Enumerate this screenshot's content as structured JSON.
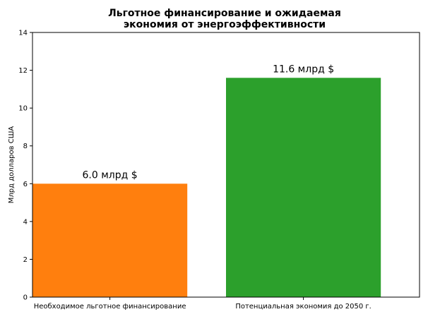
{
  "chart_data": {
    "type": "bar",
    "title_lines": [
      "Льготное финансирование и ожидаемая",
      "экономия от энергоэффективности"
    ],
    "xlabel": "",
    "ylabel": "Млрд долларов США",
    "categories": [
      "Необходимое льготное финансирование",
      "Потенциальная экономия до 2050 г."
    ],
    "values": [
      6.0,
      11.6
    ],
    "value_labels": [
      "6.0 млрд $",
      "11.6 млрд $"
    ],
    "colors": [
      "#ff7f0e",
      "#2ca02c"
    ],
    "ylim": [
      0,
      14
    ],
    "yticks": [
      0,
      2,
      4,
      6,
      8,
      10,
      12,
      14
    ],
    "grid": false,
    "legend": "none"
  }
}
